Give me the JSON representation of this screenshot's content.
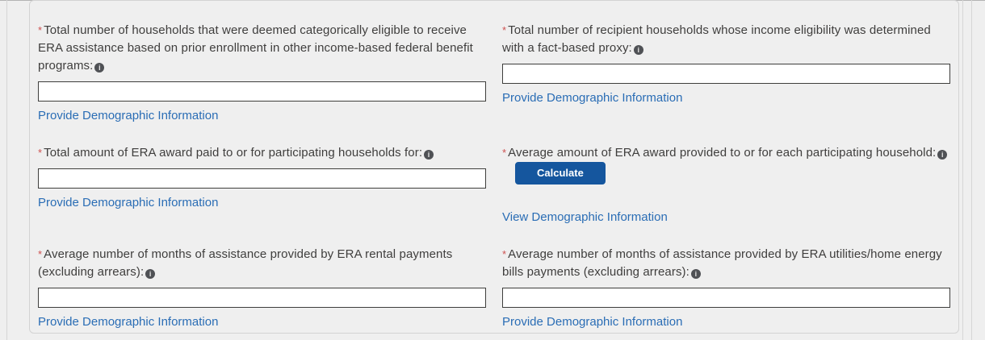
{
  "marks": {
    "required": "*",
    "info_glyph": "i"
  },
  "colors": {
    "page_background": "#efefef",
    "panel_border": "#d3d3d3",
    "label_text": "#3f3e3d",
    "required_asterisk": "#ce5150",
    "link_blue": "#2a6db5",
    "input_border": "#3e3e3c",
    "button_blue": "#15569e",
    "button_text": "#ffffff",
    "info_icon_background": "#4f5155"
  },
  "fields": [
    {
      "label": "Total number of households that were deemed categorically eligible to receive ERA assistance based on prior enrollment in other income-based federal benefit programs:",
      "required": true,
      "input_value": "",
      "link": "Provide Demographic Information"
    },
    {
      "label": "Total number of recipient households whose income eligibility was determined with a fact-based proxy:",
      "required": true,
      "input_value": "",
      "link": "Provide Demographic Information"
    },
    {
      "label": "Total amount of ERA award paid to or for participating households for:",
      "required": true,
      "input_value": "",
      "link": "Provide Demographic Information"
    },
    {
      "label": "Average amount of ERA award provided to or for each participating household:",
      "required": true,
      "button_label": "Calculate",
      "link": "View Demographic Information"
    },
    {
      "label": "Average number of months of assistance provided by ERA rental payments (excluding arrears):",
      "required": true,
      "input_value": "",
      "link": "Provide Demographic Information"
    },
    {
      "label": "Average number of months of assistance provided by ERA utilities/home energy bills payments (excluding arrears):",
      "required": true,
      "input_value": "",
      "link": "Provide Demographic Information"
    }
  ]
}
